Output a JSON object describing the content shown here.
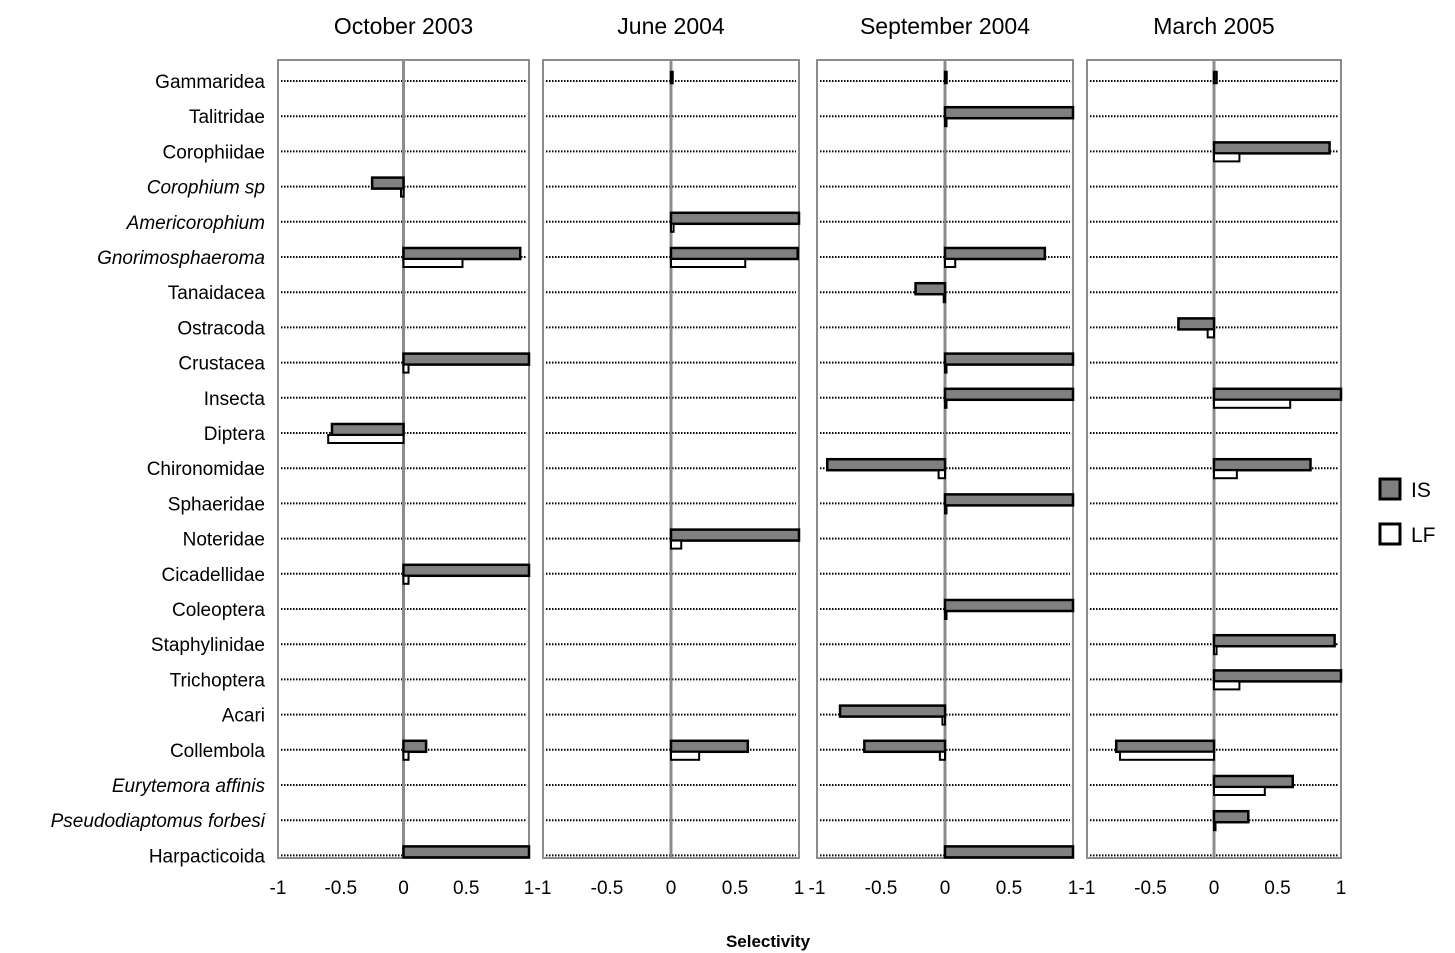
{
  "chart_data": {
    "type": "bar",
    "orientation": "horizontal",
    "xlabel": "Selectivity",
    "xlim": [
      -1,
      1
    ],
    "xticks": [
      "-1",
      "-0.5",
      "0",
      "0.5",
      "1"
    ],
    "grid": "dotted horizontal lines per category",
    "legend": {
      "placement": "right",
      "entries": [
        "IS",
        "LF"
      ]
    },
    "colors": {
      "IS": "#808080",
      "LF": "#ffffff",
      "outline": "#000000",
      "zero_line": "#8c8c8c",
      "frame": "#8c8c8c"
    },
    "categories": [
      "Gammaridea",
      "Talitridae",
      "Corophiidae",
      "Corophium sp",
      "Americorophium",
      "Gnorimosphaeroma",
      "Tanaidacea",
      "Ostracoda",
      "Crustacea",
      "Insecta",
      "Diptera",
      "Chironomidae",
      "Sphaeridae",
      "Noteridae",
      "Cicadellidae",
      "Coleoptera",
      "Staphylinidae",
      "Trichoptera",
      "Acari",
      "Collembola",
      "Eurytemora affinis",
      "Pseudodiaptomus forbesi",
      "Harpacticoida"
    ],
    "italic_categories": [
      "Corophium sp",
      "Americorophium",
      "Gnorimosphaeroma",
      "Eurytemora affinis",
      "Pseudodiaptomus forbesi"
    ],
    "panels": [
      {
        "title": "October 2003",
        "series": [
          {
            "name": "IS",
            "values": [
              0,
              0,
              0,
              -0.25,
              0,
              0.93,
              0,
              0,
              1.0,
              0,
              -0.57,
              0,
              0,
              0,
              1.0,
              0,
              0,
              0,
              0,
              0.18,
              0,
              0,
              1.0
            ]
          },
          {
            "name": "LF",
            "values": [
              0,
              0,
              0,
              -0.02,
              0,
              0.47,
              0,
              0,
              0.04,
              0,
              -0.6,
              0,
              0,
              0,
              0.04,
              0,
              0,
              0,
              0,
              0.04,
              0,
              0,
              0
            ]
          }
        ]
      },
      {
        "title": "June 2004",
        "series": [
          {
            "name": "IS",
            "values": [
              0.01,
              0,
              0,
              0,
              1.0,
              0.99,
              0,
              0,
              0,
              0,
              0,
              0,
              0,
              1.0,
              0,
              0,
              0,
              0,
              0,
              0.6,
              0,
              0,
              0
            ]
          },
          {
            "name": "LF",
            "values": [
              0,
              0,
              0,
              0,
              0.02,
              0.58,
              0,
              0,
              0,
              0,
              0,
              0,
              0,
              0.08,
              0,
              0,
              0,
              0,
              0,
              0.22,
              0,
              0,
              0
            ]
          }
        ]
      },
      {
        "title": "September 2004",
        "series": [
          {
            "name": "IS",
            "values": [
              0.01,
              1.0,
              0,
              0,
              0,
              0.78,
              -0.23,
              0,
              1.0,
              1.0,
              0,
              -0.92,
              1.0,
              0,
              0,
              1.0,
              0,
              0,
              -0.82,
              -0.63,
              0,
              0,
              1.0
            ]
          },
          {
            "name": "LF",
            "values": [
              0,
              0.01,
              0,
              0,
              0,
              0.08,
              -0.01,
              0,
              0.01,
              0.01,
              0,
              -0.05,
              0.01,
              0,
              0,
              0.01,
              0,
              0,
              -0.02,
              -0.04,
              0,
              0,
              0
            ]
          }
        ]
      },
      {
        "title": "March 2005",
        "series": [
          {
            "name": "IS",
            "values": [
              0.02,
              0,
              0.91,
              0,
              0,
              0,
              0,
              -0.28,
              0,
              1.0,
              0,
              0.76,
              0,
              0,
              0,
              0,
              0.95,
              1.0,
              0,
              -0.77,
              0.62,
              0.27,
              0
            ]
          },
          {
            "name": "LF",
            "values": [
              0,
              0,
              0.2,
              0,
              0,
              0,
              0,
              -0.05,
              0,
              0.6,
              0,
              0.18,
              0,
              0,
              0,
              0,
              0.02,
              0.2,
              0,
              -0.74,
              0.4,
              0.01,
              0
            ]
          }
        ]
      }
    ]
  }
}
